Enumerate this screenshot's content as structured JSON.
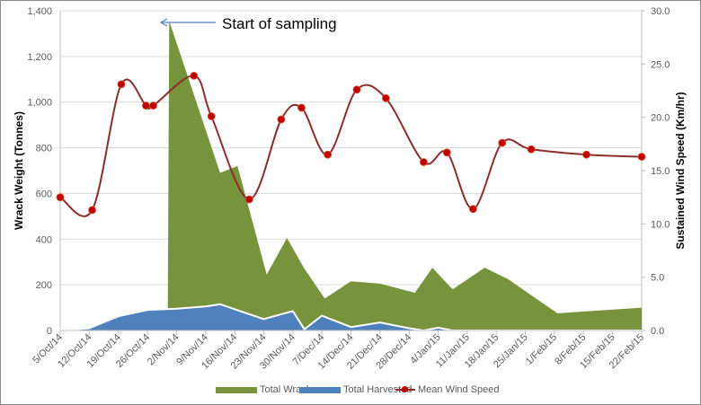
{
  "chart_data": {
    "type": "area+line",
    "title": "",
    "annotation": "Start of sampling",
    "xlabel": "",
    "ylabel": "Wrack Weight (Tonnes)",
    "y2label": "Sustained Wind Speed (Km/hr)",
    "ylim": [
      0,
      1400
    ],
    "y2lim": [
      0,
      30
    ],
    "yticks": [
      "0",
      "200",
      "400",
      "600",
      "800",
      "1,000",
      "1,200",
      "1,400"
    ],
    "y2ticks": [
      "0.0",
      "5.0",
      "10.0",
      "15.0",
      "20.0",
      "25.0",
      "30.0"
    ],
    "xticks": [
      "5/Oct/14",
      "12/Oct/14",
      "19/Oct/14",
      "26/Oct/14",
      "2/Nov/14",
      "9/Nov/14",
      "16/Nov/14",
      "23/Nov/14",
      "30/Nov/14",
      "7/Dec/14",
      "14/Dec/14",
      "21/Dec/14",
      "28/Dec/14",
      "4/Jan/15",
      "11/Jan/15",
      "18/Jan/15",
      "25/Jan/15",
      "1/Feb/15",
      "8/Feb/15",
      "15/Feb/15",
      "22/Feb/15"
    ],
    "grid": true,
    "legend_position": "bottom",
    "series": [
      {
        "name": "Total Wrack",
        "type": "area",
        "color": "#77933c",
        "points": [
          [
            0,
            0
          ],
          [
            3,
            0
          ],
          [
            3.7,
            90
          ],
          [
            3.75,
            1355
          ],
          [
            5.5,
            690
          ],
          [
            6.1,
            720
          ],
          [
            7.1,
            245
          ],
          [
            7.8,
            405
          ],
          [
            8.4,
            270
          ],
          [
            9.1,
            140
          ],
          [
            10,
            215
          ],
          [
            11,
            205
          ],
          [
            12.2,
            165
          ],
          [
            12.8,
            275
          ],
          [
            13.5,
            180
          ],
          [
            14.6,
            275
          ],
          [
            15.4,
            225
          ],
          [
            17.1,
            75
          ],
          [
            20,
            100
          ]
        ]
      },
      {
        "name": "Total Harvested",
        "type": "area",
        "color": "#4f81bd",
        "points": [
          [
            0,
            0
          ],
          [
            1,
            10
          ],
          [
            2,
            62
          ],
          [
            3,
            90
          ],
          [
            4,
            95
          ],
          [
            5,
            105
          ],
          [
            5.5,
            115
          ],
          [
            7,
            50
          ],
          [
            8,
            85
          ],
          [
            8.4,
            5
          ],
          [
            9,
            65
          ],
          [
            10,
            15
          ],
          [
            11,
            35
          ],
          [
            12,
            10
          ],
          [
            12.5,
            0
          ],
          [
            13,
            12
          ],
          [
            13.5,
            0
          ],
          [
            20,
            0
          ]
        ]
      },
      {
        "name": "Mean Wind Speed",
        "type": "line",
        "color": "#8b2d2d",
        "marker_color": "#c00000",
        "points": [
          [
            0,
            12.5
          ],
          [
            1.1,
            11.3
          ],
          [
            2.1,
            23.1
          ],
          [
            2.95,
            21.1
          ],
          [
            3.2,
            21.1
          ],
          [
            4.6,
            23.9
          ],
          [
            5.2,
            20.1
          ],
          [
            6.5,
            12.3
          ],
          [
            7.6,
            19.8
          ],
          [
            8.3,
            20.9
          ],
          [
            9.2,
            16.5
          ],
          [
            10.2,
            22.6
          ],
          [
            11.2,
            21.8
          ],
          [
            12.5,
            15.8
          ],
          [
            13.3,
            16.7
          ],
          [
            14.2,
            11.4
          ],
          [
            15.2,
            17.6
          ],
          [
            16.2,
            17.0
          ],
          [
            18.1,
            16.5
          ],
          [
            20,
            16.3
          ]
        ]
      }
    ]
  },
  "legend": {
    "wrack": "Total Wrack",
    "harvested": "Total Harvested",
    "wind": "Mean Wind Speed"
  }
}
